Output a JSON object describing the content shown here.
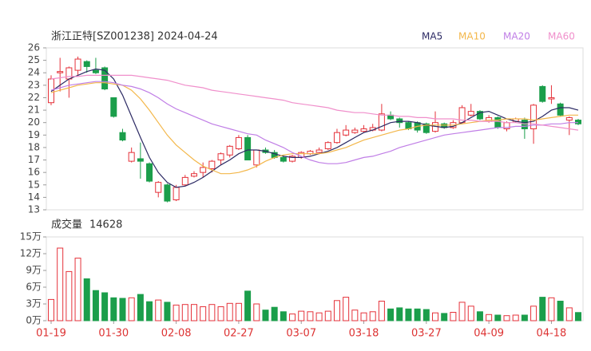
{
  "chart_data": {
    "type": "candlestick",
    "title": "浙江正特[SZ001238] 2024-04-24",
    "categories": [
      "01-19",
      null,
      null,
      null,
      null,
      null,
      null,
      "01-30",
      null,
      null,
      null,
      null,
      null,
      null,
      "02-08",
      null,
      null,
      null,
      null,
      null,
      null,
      "02-27",
      null,
      null,
      null,
      null,
      null,
      null,
      "03-07",
      null,
      null,
      null,
      null,
      null,
      null,
      "03-18",
      null,
      null,
      null,
      null,
      null,
      null,
      "03-27",
      null,
      null,
      null,
      null,
      null,
      null,
      "04-09",
      null,
      null,
      null,
      null,
      null,
      null,
      "04-18",
      null,
      null,
      null
    ],
    "open": [
      21.6,
      24.0,
      23.5,
      24.2,
      24.9,
      24.2,
      24.4,
      22.0,
      19.2,
      16.9,
      17.1,
      16.7,
      14.4,
      15.0,
      13.8,
      15.0,
      15.7,
      16.0,
      16.3,
      17.0,
      17.4,
      17.9,
      18.8,
      16.6,
      17.8,
      17.6,
      17.2,
      16.9,
      17.2,
      17.5,
      17.6,
      17.9,
      18.4,
      19.0,
      19.2,
      19.3,
      19.4,
      19.4,
      20.6,
      20.3,
      20.0,
      20.0,
      19.9,
      19.3,
      19.9,
      19.6,
      20.0,
      20.6,
      20.9,
      20.1,
      20.4,
      19.5,
      20.1,
      20.2,
      19.5,
      22.9,
      21.9,
      21.5,
      20.2,
      20.2
    ],
    "high": [
      23.8,
      25.2,
      24.5,
      25.3,
      25.0,
      25.2,
      24.5,
      22.0,
      19.5,
      18.0,
      18.4,
      16.8,
      15.3,
      15.1,
      15.0,
      15.8,
      16.1,
      16.8,
      17.0,
      17.6,
      18.2,
      19.0,
      19.0,
      17.8,
      18.0,
      17.8,
      17.4,
      17.4,
      17.7,
      17.8,
      18.0,
      18.5,
      19.5,
      19.8,
      19.6,
      19.8,
      19.9,
      21.5,
      20.9,
      20.4,
      20.1,
      20.1,
      20.0,
      20.9,
      20.0,
      20.2,
      21.4,
      21.5,
      21.0,
      20.6,
      20.5,
      20.1,
      20.4,
      20.4,
      21.5,
      23.0,
      23.0,
      21.6,
      20.5,
      20.3
    ],
    "low": [
      21.4,
      22.5,
      22.0,
      23.8,
      24.0,
      23.9,
      22.6,
      20.4,
      18.5,
      16.8,
      15.5,
      15.2,
      14.0,
      13.6,
      13.7,
      14.9,
      15.6,
      15.6,
      16.0,
      16.6,
      17.2,
      17.8,
      17.0,
      16.4,
      17.5,
      17.1,
      16.8,
      16.8,
      17.1,
      17.4,
      17.5,
      17.8,
      18.3,
      18.9,
      19.1,
      19.2,
      19.3,
      19.3,
      20.2,
      19.6,
      19.4,
      19.2,
      19.1,
      19.2,
      19.5,
      19.5,
      19.9,
      20.5,
      20.2,
      20.0,
      19.5,
      19.3,
      20.0,
      18.7,
      18.3,
      21.6,
      21.5,
      20.5,
      19.0,
      19.8
    ],
    "close": [
      23.5,
      24.1,
      24.4,
      25.1,
      24.5,
      24.0,
      22.7,
      20.5,
      18.6,
      17.6,
      16.9,
      15.3,
      15.2,
      13.7,
      14.8,
      15.6,
      15.9,
      16.4,
      16.9,
      17.5,
      18.1,
      18.8,
      17.0,
      17.8,
      17.6,
      17.2,
      16.9,
      17.3,
      17.6,
      17.7,
      17.8,
      18.4,
      19.2,
      19.4,
      19.4,
      19.5,
      19.6,
      20.7,
      20.3,
      20.0,
      19.5,
      19.4,
      19.2,
      20.0,
      19.6,
      20.0,
      21.2,
      20.9,
      20.3,
      20.4,
      19.6,
      20.0,
      20.3,
      19.5,
      21.4,
      21.7,
      22.0,
      20.6,
      20.4,
      19.9
    ],
    "ylim": [
      13,
      26
    ],
    "yticks": [
      13,
      14,
      15,
      16,
      17,
      18,
      19,
      20,
      21,
      22,
      23,
      24,
      25,
      26
    ],
    "series": [
      {
        "name": "MA5",
        "color": "#2c2a64",
        "values": [
          22.5,
          23.0,
          23.5,
          23.8,
          24.1,
          24.3,
          24.2,
          23.5,
          22.2,
          20.5,
          18.8,
          17.2,
          16.0,
          15.2,
          14.8,
          14.9,
          15.2,
          15.6,
          16.1,
          16.6,
          17.0,
          17.5,
          17.8,
          17.8,
          17.7,
          17.5,
          17.3,
          17.2,
          17.2,
          17.3,
          17.5,
          17.7,
          18.0,
          18.4,
          18.8,
          19.2,
          19.4,
          19.7,
          20.0,
          20.1,
          20.1,
          20.0,
          19.8,
          19.7,
          19.6,
          19.7,
          20.0,
          20.4,
          20.8,
          20.9,
          20.6,
          20.3,
          20.1,
          20.0,
          20.1,
          20.5,
          21.0,
          21.2,
          21.2,
          21.0
        ]
      },
      {
        "name": "MA10",
        "color": "#f3b74a",
        "values": [
          22.4,
          22.6,
          22.8,
          23.0,
          23.1,
          23.2,
          23.2,
          23.1,
          23.0,
          22.6,
          21.9,
          21.0,
          20.0,
          19.0,
          18.2,
          17.6,
          17.0,
          16.5,
          16.2,
          15.9,
          15.9,
          16.0,
          16.2,
          16.5,
          16.9,
          17.2,
          17.4,
          17.5,
          17.5,
          17.5,
          17.5,
          17.6,
          17.8,
          18.0,
          18.3,
          18.6,
          18.8,
          19.0,
          19.2,
          19.4,
          19.5,
          19.7,
          19.8,
          19.8,
          19.8,
          19.8,
          19.9,
          20.0,
          20.1,
          20.2,
          20.2,
          20.3,
          20.3,
          20.3,
          20.2,
          20.3,
          20.4,
          20.5,
          20.6,
          20.6
        ]
      },
      {
        "name": "MA20",
        "color": "#c07ee6",
        "values": [
          22.6,
          22.8,
          23.0,
          23.1,
          23.2,
          23.3,
          23.3,
          23.2,
          23.0,
          22.9,
          22.7,
          22.4,
          22.0,
          21.5,
          21.1,
          20.8,
          20.5,
          20.2,
          19.9,
          19.7,
          19.5,
          19.3,
          19.1,
          19.0,
          18.6,
          18.3,
          18.0,
          17.6,
          17.3,
          17.0,
          16.8,
          16.7,
          16.7,
          16.8,
          17.0,
          17.2,
          17.3,
          17.5,
          17.7,
          18.0,
          18.2,
          18.4,
          18.6,
          18.8,
          19.0,
          19.1,
          19.2,
          19.3,
          19.4,
          19.5,
          19.6,
          19.6,
          19.7,
          19.7,
          19.8,
          19.8,
          19.9,
          19.9,
          20.0,
          20.0
        ]
      },
      {
        "name": "MA60",
        "color": "#f08fcb",
        "values": [
          23.5,
          23.6,
          23.7,
          23.7,
          23.8,
          23.8,
          23.8,
          23.8,
          23.8,
          23.8,
          23.7,
          23.6,
          23.5,
          23.4,
          23.2,
          23.0,
          22.9,
          22.8,
          22.6,
          22.5,
          22.4,
          22.3,
          22.2,
          22.1,
          22.0,
          21.9,
          21.8,
          21.6,
          21.5,
          21.4,
          21.3,
          21.2,
          21.0,
          20.9,
          20.8,
          20.8,
          20.7,
          20.6,
          20.6,
          20.5,
          20.5,
          20.4,
          20.4,
          20.3,
          20.3,
          20.3,
          20.2,
          20.2,
          20.1,
          20.1,
          20.1,
          20.0,
          20.0,
          19.9,
          19.9,
          19.8,
          19.7,
          19.6,
          19.5,
          19.4
        ]
      }
    ],
    "volume": {
      "label": "成交量",
      "latest": 14628,
      "values": [
        3.8,
        13.0,
        8.8,
        11.2,
        7.5,
        5.4,
        5.0,
        4.1,
        4.0,
        4.1,
        4.7,
        3.4,
        3.7,
        3.3,
        2.8,
        2.9,
        2.9,
        2.5,
        2.9,
        2.5,
        3.1,
        3.1,
        5.3,
        3.0,
        1.9,
        2.4,
        1.6,
        1.2,
        1.7,
        1.6,
        1.4,
        1.7,
        3.6,
        4.2,
        1.9,
        1.4,
        1.6,
        3.5,
        2.1,
        2.3,
        2.1,
        2.1,
        2.0,
        1.4,
        1.3,
        1.5,
        3.3,
        2.6,
        1.6,
        1.1,
        1.0,
        0.9,
        1.0,
        1.0,
        2.6,
        4.2,
        4.1,
        3.5,
        2.3,
        1.46
      ],
      "ylim": [
        0,
        15
      ],
      "yticks": [
        {
          "value": 0,
          "label": "0万"
        },
        {
          "value": 3,
          "label": "3万"
        },
        {
          "value": 6,
          "label": "6万"
        },
        {
          "value": 9,
          "label": "9万"
        },
        {
          "value": 12,
          "label": "12万"
        },
        {
          "value": 15,
          "label": "15万"
        }
      ]
    },
    "up_color": "#e5323a",
    "down_color": "#1b9e4b"
  }
}
